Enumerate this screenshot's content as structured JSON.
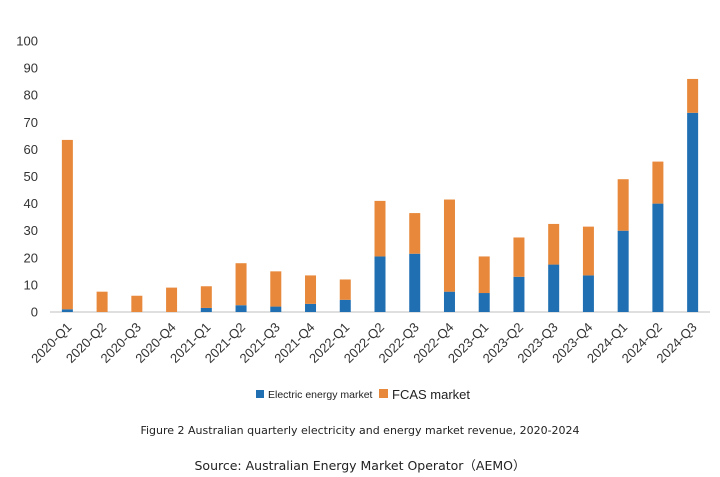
{
  "chart_data": {
    "type": "bar",
    "stacked": true,
    "categories": [
      "2020-Q1",
      "2020-Q2",
      "2020-Q3",
      "2020-Q4",
      "2021-Q1",
      "2021-Q2",
      "2021-Q3",
      "2021-Q4",
      "2022-Q1",
      "2022-Q2",
      "2022-Q3",
      "2022-Q4",
      "2023-Q1",
      "2023-Q2",
      "2023-Q3",
      "2023-Q4",
      "2024-Q1",
      "2024-Q2",
      "2024-Q3"
    ],
    "series": [
      {
        "name": "Electric energy market",
        "color": "#1f6fb2",
        "values": [
          1,
          0,
          0,
          0,
          1.5,
          2.5,
          2,
          3,
          4.5,
          20.5,
          21.5,
          7.5,
          7,
          13,
          17.5,
          13.5,
          30,
          40,
          73.5
        ]
      },
      {
        "name": "FCAS market",
        "color": "#e8883a",
        "values": [
          62.5,
          7.5,
          6,
          9,
          8,
          15.5,
          13,
          10.5,
          7.5,
          20.5,
          15,
          34,
          13.5,
          14.5,
          15,
          18,
          19,
          15.5,
          12.5
        ]
      }
    ],
    "ylim": [
      0,
      100
    ],
    "yticks": [
      0,
      10,
      20,
      30,
      40,
      50,
      60,
      70,
      80,
      90,
      100
    ],
    "xlabel": "",
    "ylabel": "",
    "legend_position": "bottom-center"
  },
  "caption": {
    "title": "Figure 2 Australian quarterly electricity and energy market revenue, 2020-2024",
    "source": "Source: Australian Energy Market Operator（AEMO）"
  }
}
